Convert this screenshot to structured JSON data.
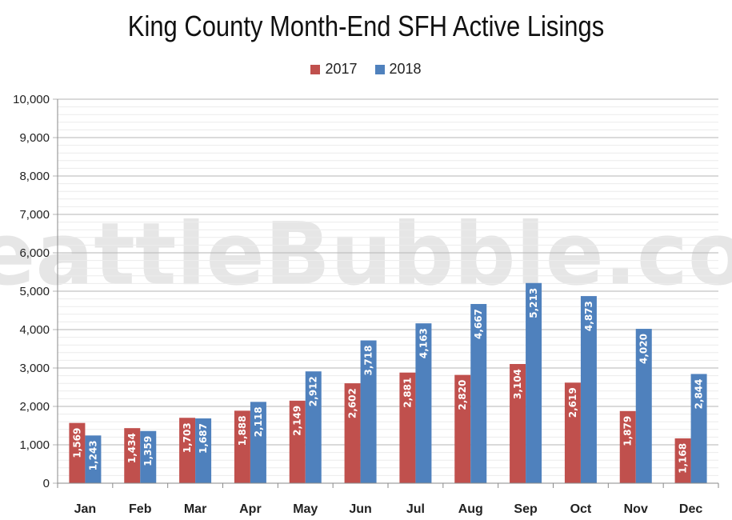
{
  "chart_data": {
    "type": "bar",
    "title": "King County Month-End SFH Active Lisings",
    "watermark": "SeattleBubble.com",
    "categories": [
      "Jan",
      "Feb",
      "Mar",
      "Apr",
      "May",
      "Jun",
      "Jul",
      "Aug",
      "Sep",
      "Oct",
      "Nov",
      "Dec"
    ],
    "series": [
      {
        "name": "2017",
        "color": "#c0504d",
        "values": [
          1569,
          1434,
          1703,
          1888,
          2149,
          2602,
          2881,
          2820,
          3104,
          2619,
          1879,
          1168
        ],
        "labels": [
          "1,569",
          "1,434",
          "1,703",
          "1,888",
          "2,149",
          "2,602",
          "2,881",
          "2,820",
          "3,104",
          "2,619",
          "1,879",
          "1,168"
        ]
      },
      {
        "name": "2018",
        "color": "#4f81bd",
        "values": [
          1243,
          1359,
          1687,
          2118,
          2912,
          3718,
          4163,
          4667,
          5213,
          4873,
          4020,
          2844
        ],
        "labels": [
          "1,243",
          "1,359",
          "1,687",
          "2,118",
          "2,912",
          "3,718",
          "4,163",
          "4,667",
          "5,213",
          "4,873",
          "4,020",
          "2,844"
        ]
      }
    ],
    "ylim": [
      0,
      10000
    ],
    "yticks": [
      0,
      1000,
      2000,
      3000,
      4000,
      5000,
      6000,
      7000,
      8000,
      9000,
      10000
    ],
    "ytick_labels": [
      "0",
      "1,000",
      "2,000",
      "3,000",
      "4,000",
      "5,000",
      "6,000",
      "7,000",
      "8,000",
      "9,000",
      "10,000"
    ],
    "grid": true,
    "legend_position": "top-center",
    "xlabel": "",
    "ylabel": ""
  }
}
